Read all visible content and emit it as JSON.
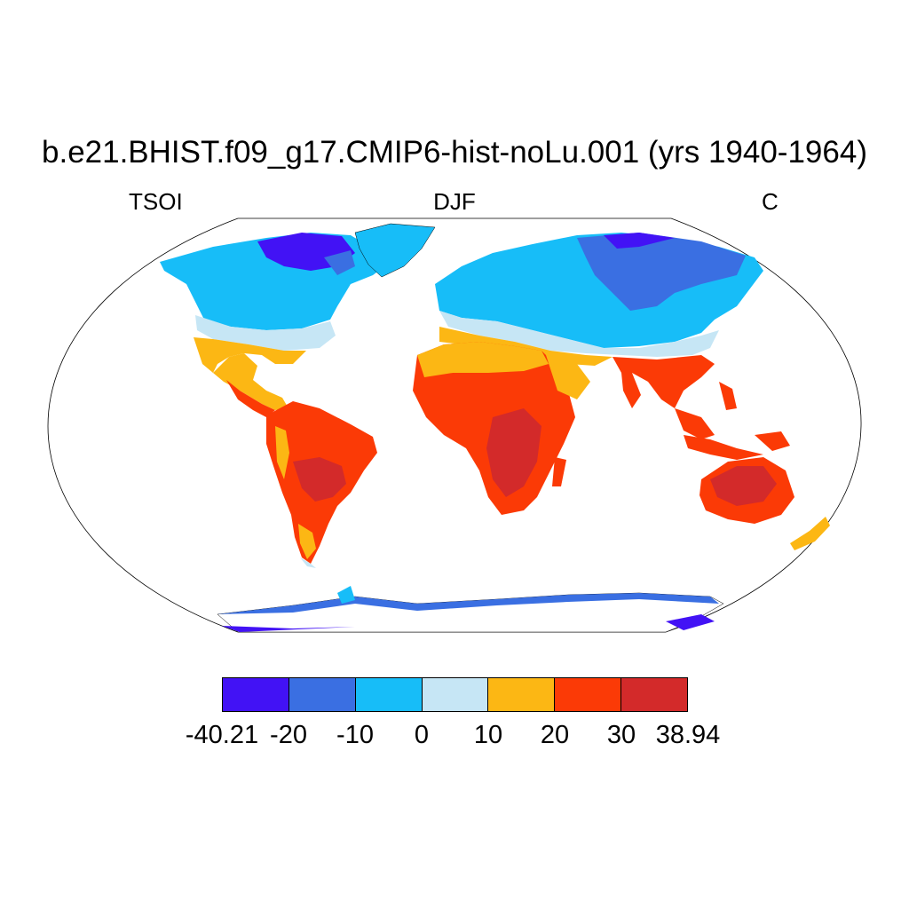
{
  "title": "b.e21.BHIST.f09_g17.CMIP6-hist-noLu.001 (yrs 1940-1964)",
  "left_label": "TSOI",
  "center_label": "DJF",
  "right_label": "C",
  "colorbar": {
    "colors": [
      "#4212f5",
      "#3a6fe2",
      "#17bdf8",
      "#c6e6f5",
      "#fcb714",
      "#fb3a06",
      "#d32a2a"
    ],
    "tick_labels": [
      "-40.21",
      "-20",
      "-10",
      "0",
      "10",
      "20",
      "30",
      "38.94"
    ]
  },
  "map": {
    "projection": "Robinson",
    "ocean_color": "#ffffff",
    "outline_color": "#000000"
  }
}
